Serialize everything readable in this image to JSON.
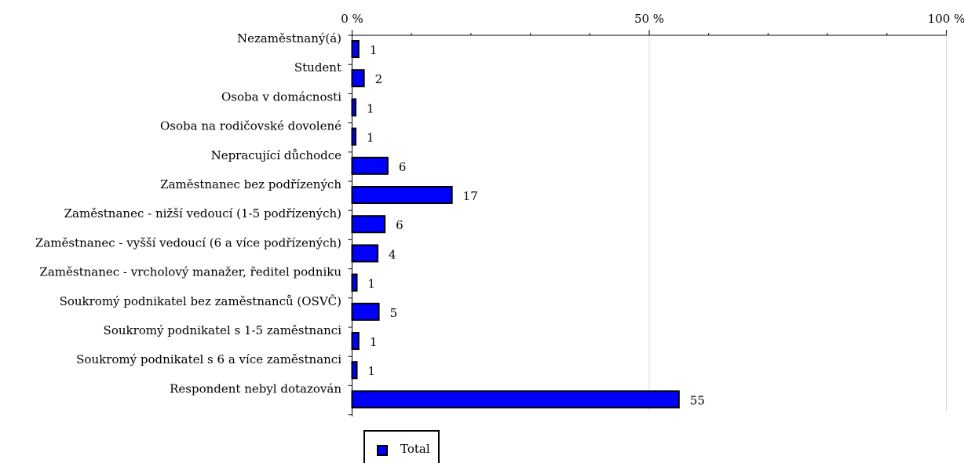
{
  "chart_data": {
    "type": "bar",
    "orientation": "horizontal",
    "categories": [
      "Nezaměstnaný(á)",
      "Student",
      "Osoba v domácnosti",
      "Osoba na rodičovské dovolené",
      "Nepracující důchodce",
      "Zaměstnanec bez podřízených",
      "Zaměstnanec - nižší vedoucí (1-5 podřízených)",
      "Zaměstnanec - vyšší vedoucí (6 a více podřízených)",
      "Zaměstnanec - vrcholový manažer, ředitel podniku",
      "Soukromý podnikatel bez zaměstnanců (OSVČ)",
      "Soukromý podnikatel s 1-5 zaměstnanci",
      "Soukromý podnikatel s 6 a více zaměstnanci",
      "Respondent nebyl dotazován"
    ],
    "series": [
      {
        "name": "Total",
        "values": [
          1.1,
          2.0,
          0.6,
          0.6,
          6.0,
          16.8,
          5.5,
          4.3,
          0.8,
          4.5,
          1.1,
          0.8,
          55.0
        ],
        "labels": [
          "1",
          "2",
          "1",
          "1",
          "6",
          "17",
          "6",
          "4",
          "1",
          "5",
          "1",
          "1",
          "55"
        ],
        "color": "#0000ff"
      }
    ],
    "xlim": [
      0,
      100
    ],
    "x_ticks": [
      0,
      50,
      100
    ],
    "x_tick_labels": [
      "0 %",
      "50 %",
      "100 %"
    ],
    "axis_position": "top",
    "grid": true,
    "legend_position": "bottom"
  }
}
